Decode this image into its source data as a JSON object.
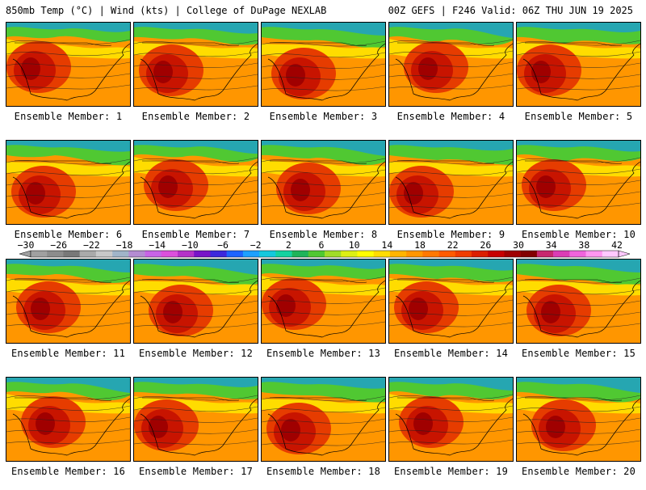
{
  "header": {
    "title_left": "850mb Temp (°C) | Wind (kts) | College of DuPage NEXLAB",
    "title_right": "00Z GEFS | F246 Valid: 06Z THU JUN 19 2025"
  },
  "panels": [
    {
      "label": "Ensemble Member: 1"
    },
    {
      "label": "Ensemble Member: 2"
    },
    {
      "label": "Ensemble Member: 3"
    },
    {
      "label": "Ensemble Member: 4"
    },
    {
      "label": "Ensemble Member: 5"
    },
    {
      "label": "Ensemble Member: 6"
    },
    {
      "label": "Ensemble Member: 7"
    },
    {
      "label": "Ensemble Member: 8"
    },
    {
      "label": "Ensemble Member: 9"
    },
    {
      "label": "Ensemble Member: 10"
    },
    {
      "label": "Ensemble Member: 11"
    },
    {
      "label": "Ensemble Member: 12"
    },
    {
      "label": "Ensemble Member: 13"
    },
    {
      "label": "Ensemble Member: 14"
    },
    {
      "label": "Ensemble Member: 15"
    },
    {
      "label": "Ensemble Member: 16"
    },
    {
      "label": "Ensemble Member: 17"
    },
    {
      "label": "Ensemble Member: 18"
    },
    {
      "label": "Ensemble Member: 19"
    },
    {
      "label": "Ensemble Member: 20"
    }
  ],
  "colorbar": {
    "tick_labels": [
      "−30",
      "−26",
      "−22",
      "−18",
      "−14",
      "−10",
      "−6",
      "−2",
      "2",
      "6",
      "10",
      "14",
      "18",
      "22",
      "26",
      "30",
      "34",
      "38",
      "42"
    ],
    "colors": [
      "#a0a0a0",
      "#8c8c8c",
      "#787878",
      "#aaaaaa",
      "#c8c8c8",
      "#a0b4c8",
      "#b48cd2",
      "#c864e6",
      "#dc50dc",
      "#b432c8",
      "#7814c8",
      "#3c28dc",
      "#1e64ff",
      "#1ea0ff",
      "#14c8dc",
      "#14d2a0",
      "#1eb45a",
      "#50c832",
      "#a0dc28",
      "#dcf014",
      "#ffff00",
      "#ffdc00",
      "#ffb400",
      "#ff9600",
      "#ff7800",
      "#ff5a00",
      "#f03c00",
      "#dc1e00",
      "#c80000",
      "#a00000",
      "#820000",
      "#c8286e",
      "#dc3cb4",
      "#f064dc",
      "#ff96f0",
      "#ffc8ff"
    ]
  },
  "map_style": {
    "ocean_north": "#1ea0c8",
    "land_cool": "#50c832",
    "land_mild": "#ffdc00",
    "land_warm": "#ff9600",
    "land_hot": "#e63c00",
    "land_very_hot": "#c81400",
    "land_extreme": "#a00000"
  }
}
